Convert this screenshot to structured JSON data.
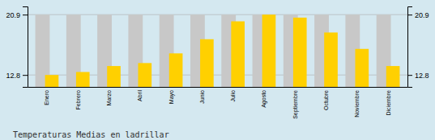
{
  "chart_data": {
    "type": "bar",
    "title": "Temperaturas Medias en ladrillar",
    "categories": [
      "Enero",
      "Febrero",
      "Marzo",
      "Abril",
      "Mayo",
      "Junio",
      "Julio",
      "Agosto",
      "Septiembre",
      "Octubre",
      "Noviembre",
      "Diciembre"
    ],
    "values": [
      12.8,
      13.2,
      14.0,
      14.4,
      15.7,
      17.6,
      20.0,
      20.9,
      20.5,
      18.5,
      16.3,
      14.0
    ],
    "shadow_max": 20.9,
    "color": "#FFD000",
    "ylim": [
      11.2,
      22.0
    ],
    "yticks": [
      12.8,
      20.9
    ],
    "grid": true
  }
}
